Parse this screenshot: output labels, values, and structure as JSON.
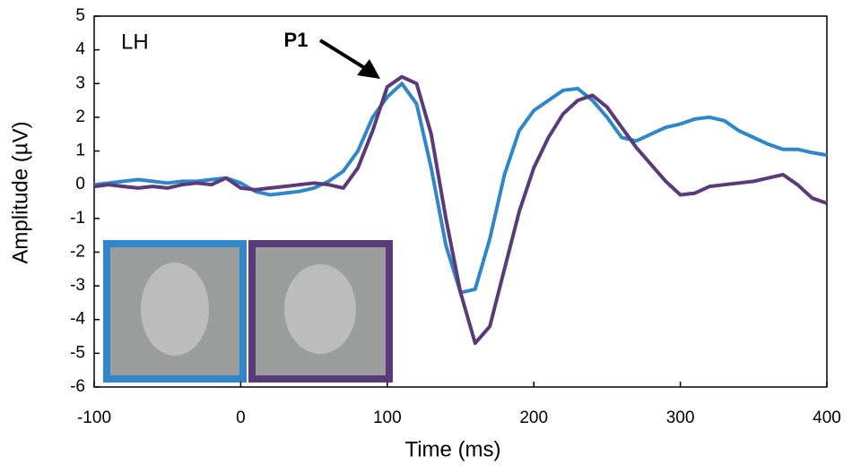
{
  "chart_data": {
    "type": "line",
    "x_label": "Time (ms)",
    "y_label": "Amplitude (µV)",
    "annotations": [
      "LH",
      "P1"
    ],
    "x": [
      -100,
      -90,
      -80,
      -70,
      -60,
      -50,
      -40,
      -30,
      -20,
      -10,
      0,
      10,
      20,
      30,
      40,
      50,
      60,
      70,
      80,
      90,
      100,
      110,
      120,
      130,
      140,
      150,
      160,
      170,
      180,
      190,
      200,
      210,
      220,
      230,
      240,
      250,
      260,
      270,
      280,
      290,
      300,
      310,
      320,
      330,
      340,
      350,
      360,
      370,
      380,
      390,
      400
    ],
    "series": [
      {
        "color": "#2f86c8",
        "values": [
          0,
          0.05,
          0.1,
          0.15,
          0.1,
          0.05,
          0.1,
          0.1,
          0.15,
          0.2,
          0.05,
          -0.2,
          -0.3,
          -0.25,
          -0.2,
          -0.1,
          0.1,
          0.4,
          1.0,
          2.0,
          2.6,
          3.0,
          2.4,
          0.5,
          -1.8,
          -3.2,
          -3.1,
          -1.6,
          0.3,
          1.6,
          2.2,
          2.5,
          2.8,
          2.85,
          2.5,
          2.0,
          1.4,
          1.3,
          1.5,
          1.7,
          1.8,
          1.95,
          2.0,
          1.9,
          1.6,
          1.4,
          1.2,
          1.05,
          1.05,
          0.95,
          0.88
        ]
      },
      {
        "color": "#5a3a78",
        "values": [
          -0.05,
          0,
          -0.05,
          -0.1,
          -0.05,
          -0.1,
          0,
          0.05,
          0,
          0.2,
          -0.1,
          -0.15,
          -0.1,
          -0.05,
          0,
          0.05,
          0,
          -0.1,
          0.5,
          1.6,
          2.9,
          3.2,
          3.0,
          1.5,
          -1.0,
          -3.2,
          -4.7,
          -4.2,
          -2.5,
          -0.8,
          0.5,
          1.4,
          2.1,
          2.5,
          2.65,
          2.3,
          1.7,
          1.1,
          0.6,
          0.1,
          -0.3,
          -0.25,
          -0.05,
          0,
          0.05,
          0.1,
          0.2,
          0.3,
          0.0,
          -0.4,
          -0.55
        ]
      }
    ],
    "xlim": [
      -100,
      400
    ],
    "xticks": [
      -100,
      0,
      100,
      200,
      300,
      400
    ],
    "ylim": [
      -6,
      5
    ],
    "yticks": [
      -6,
      -5,
      -4,
      -3,
      -2,
      -1,
      0,
      1,
      2,
      3,
      4,
      5
    ]
  }
}
